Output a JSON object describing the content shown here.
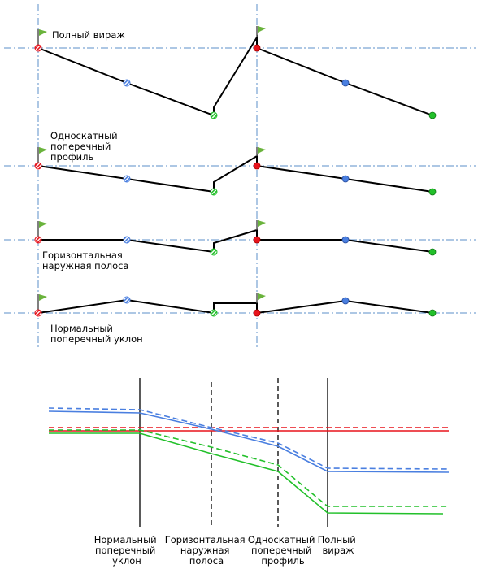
{
  "sections": [
    {
      "label_lines": [
        "Полный вираж"
      ]
    },
    {
      "label_lines": [
        "Односкатный",
        "поперечный",
        "профиль"
      ]
    },
    {
      "label_lines": [
        "Горизонтальная",
        "наружная полоса"
      ]
    },
    {
      "label_lines": [
        "Нормальный",
        "поперечный уклон"
      ]
    }
  ],
  "bottom_labels": [
    {
      "lines": [
        "Нормальный",
        "поперечный",
        "уклон"
      ]
    },
    {
      "lines": [
        "Горизонтальная",
        "наружная",
        "полоса"
      ]
    },
    {
      "lines": [
        "Односкатный",
        "поперечный",
        "профиль"
      ]
    },
    {
      "lines": [
        "Полный",
        "вираж"
      ]
    }
  ],
  "colors": {
    "red": "#e8141c",
    "blue": "#4a7fe0",
    "green": "#22c02a",
    "line": "#000000",
    "guide": "#5b8fc9",
    "flag": "#6ab33c"
  }
}
